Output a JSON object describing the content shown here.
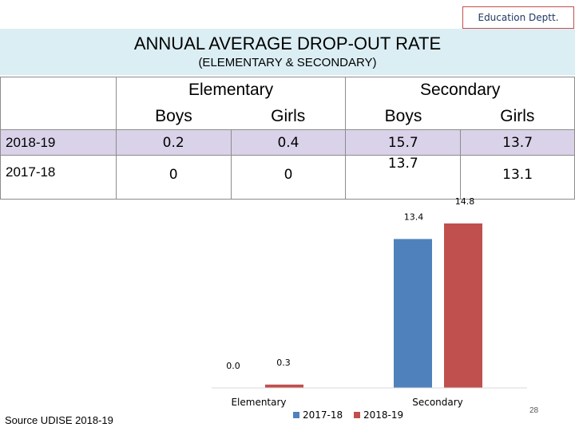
{
  "header": {
    "dept_label": "Education Deptt.",
    "title": "ANNUAL AVERAGE DROP-OUT RATE",
    "subtitle": "(ELEMENTARY & SECONDARY)"
  },
  "table": {
    "group_headers": [
      "Elementary",
      "Secondary"
    ],
    "sub_headers": [
      "Boys",
      "Girls",
      "Boys",
      "Girls"
    ],
    "rows": [
      {
        "label": "2018-19",
        "values": [
          "0.2",
          "0.4",
          "15.7",
          "13.7"
        ]
      },
      {
        "label": "2017-18",
        "values": [
          "0",
          "0",
          "13.7",
          "13.1"
        ]
      }
    ]
  },
  "chart_data": {
    "type": "bar",
    "categories": [
      "Elementary",
      "Secondary"
    ],
    "series": [
      {
        "name": "2017-18",
        "values": [
          0.0,
          13.4
        ],
        "labels": [
          "0.0",
          "13.4"
        ],
        "color": "#4f81bd"
      },
      {
        "name": "2018-19",
        "values": [
          0.3,
          14.8
        ],
        "labels": [
          "0.3",
          "14.8"
        ],
        "color": "#c0504d"
      }
    ],
    "title": "",
    "xlabel": "",
    "ylabel": "",
    "ylim": [
      0,
      15.3
    ],
    "grid": false,
    "legend": "bottom"
  },
  "footer": {
    "source": "Source UDISE 2018-19",
    "page_number": "28"
  }
}
